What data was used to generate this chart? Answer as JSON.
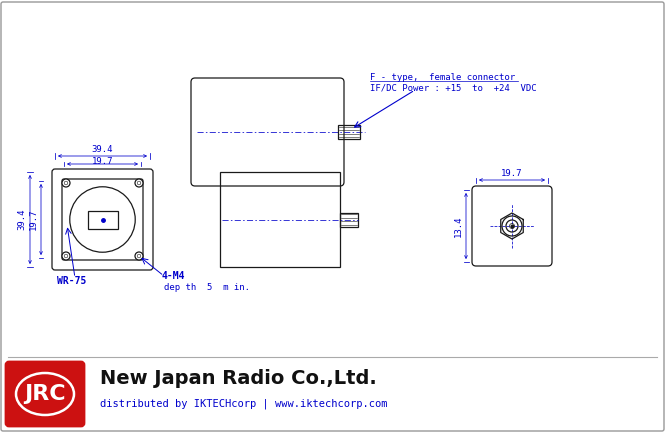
{
  "bg_color": "#ffffff",
  "draw_color": "#1a1a1a",
  "blue_color": "#0000cc",
  "red_color": "#cc1111",
  "connector_label1": "F - type,  female connector",
  "connector_label2": "IF/DC Power : +15  to  +24  VDC",
  "wr75_label": "WR-75",
  "m4_label": "4-M4",
  "depth_label": "dep th  5  m in.",
  "dim_394": "39.4",
  "dim_197_top": "19.7",
  "dim_197_left": "19.7",
  "dim_394_left": "39.4",
  "dim_197_right": "19.7",
  "dim_134_right": "13.4",
  "title_text": "New Japan Radio Co.,Ltd.",
  "subtitle_text": "distributed by IKTECHcorp | www.iktechcorp.com",
  "jrc_text": "JRC",
  "font_dim": 6.5,
  "font_label": 6.5,
  "font_title": 14,
  "font_sub": 7.5,
  "font_jrc": 16
}
